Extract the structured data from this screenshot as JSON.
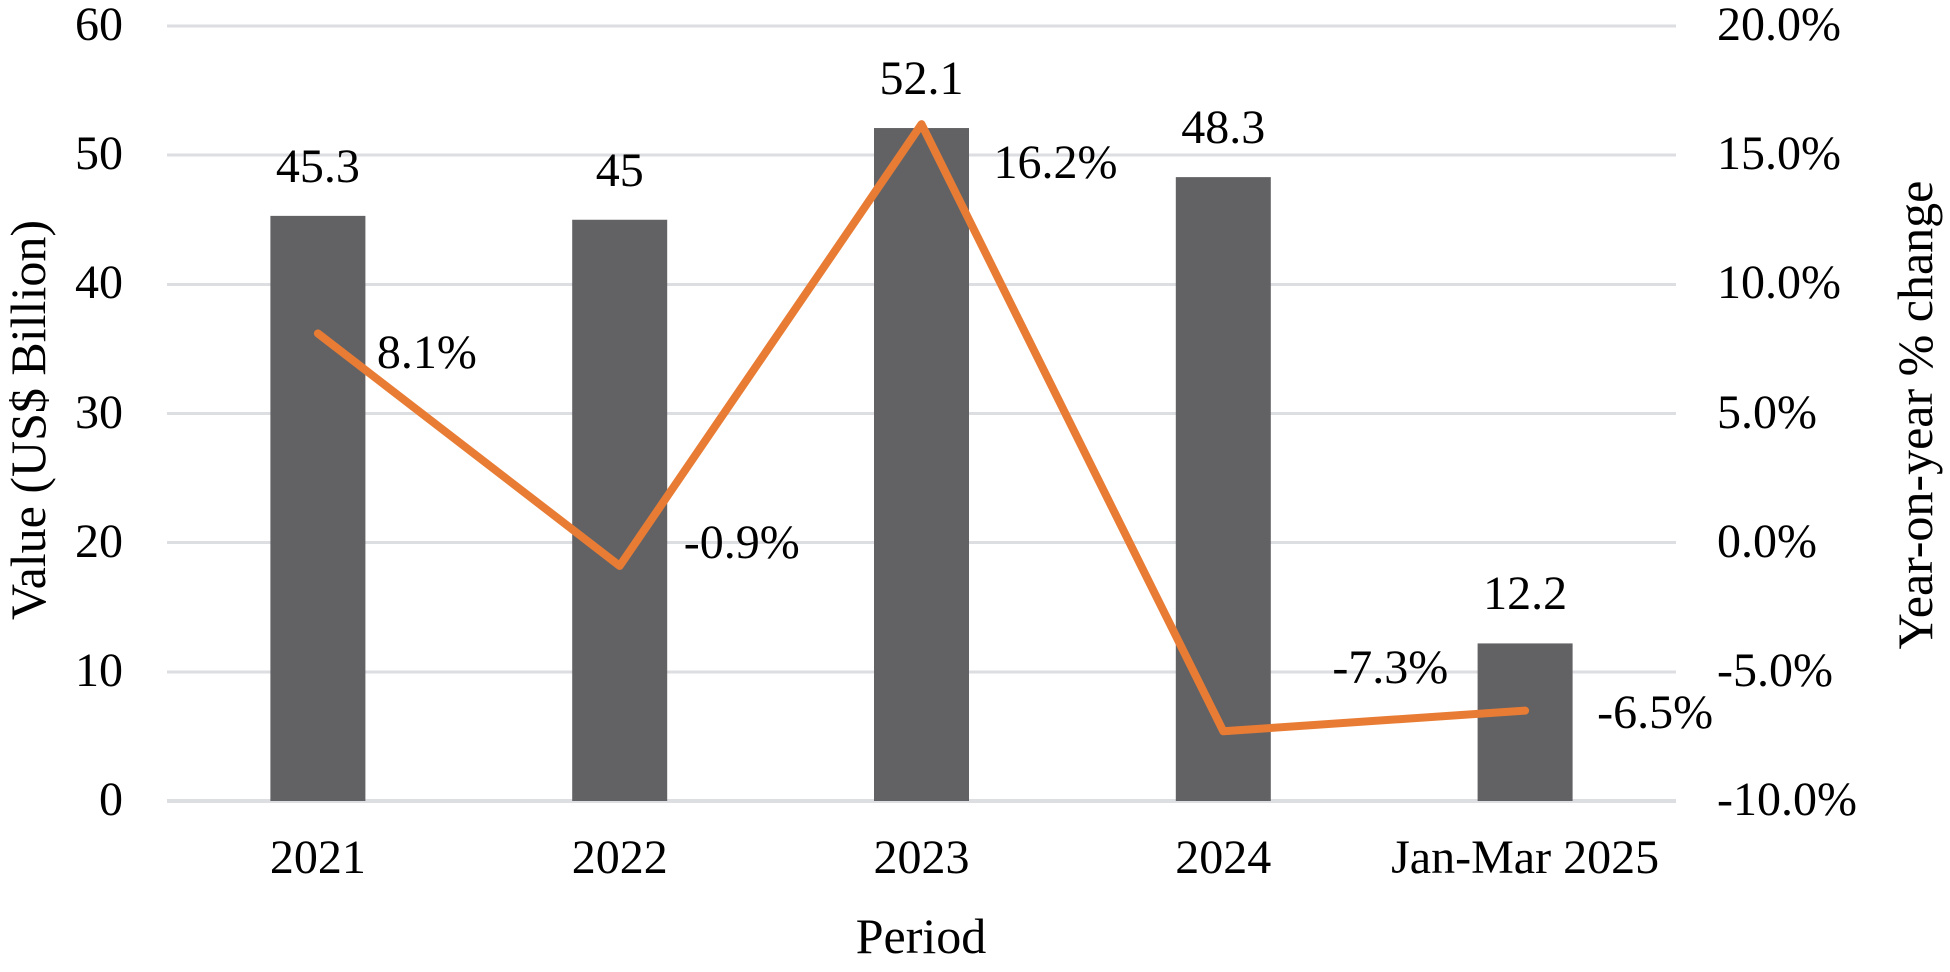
{
  "chart_data": {
    "type": "bar+line combo",
    "categories": [
      "2021",
      "2022",
      "2023",
      "2024",
      "Jan-Mar 2025"
    ],
    "series": [
      {
        "name": "Value (US$ Billion)",
        "type": "bar",
        "axis": "left",
        "values": [
          45.3,
          45,
          52.1,
          48.3,
          12.2
        ],
        "labels": [
          "45.3",
          "45",
          "52.1",
          "48.3",
          "12.2"
        ]
      },
      {
        "name": "Year-on-year % change",
        "type": "line",
        "axis": "right",
        "values": [
          8.1,
          -0.9,
          16.2,
          -7.3,
          -6.5
        ],
        "labels": [
          "8.1%",
          "-0.9%",
          "16.2%",
          "-7.3%",
          "-6.5%"
        ]
      }
    ],
    "left_axis": {
      "title": "Value (US$ Billion)",
      "min": 0,
      "max": 60,
      "step": 10,
      "tick_labels": [
        "0",
        "10",
        "20",
        "30",
        "40",
        "50",
        "60"
      ]
    },
    "right_axis": {
      "title": "Year-on-year % change",
      "min": -10,
      "max": 20,
      "step": 5,
      "tick_labels": [
        "-10.0%",
        "-5.0%",
        "0.0%",
        "5.0%",
        "10.0%",
        "15.0%",
        "20.0%"
      ]
    },
    "x_axis": {
      "title": "Period"
    },
    "grid": "horizontal gridlines only",
    "legend": "none",
    "colors": {
      "bar": "#626265",
      "line": "#E97C34",
      "gridline": "#DDDEE1",
      "text": "#000000",
      "background": "#FFFFFF"
    }
  }
}
